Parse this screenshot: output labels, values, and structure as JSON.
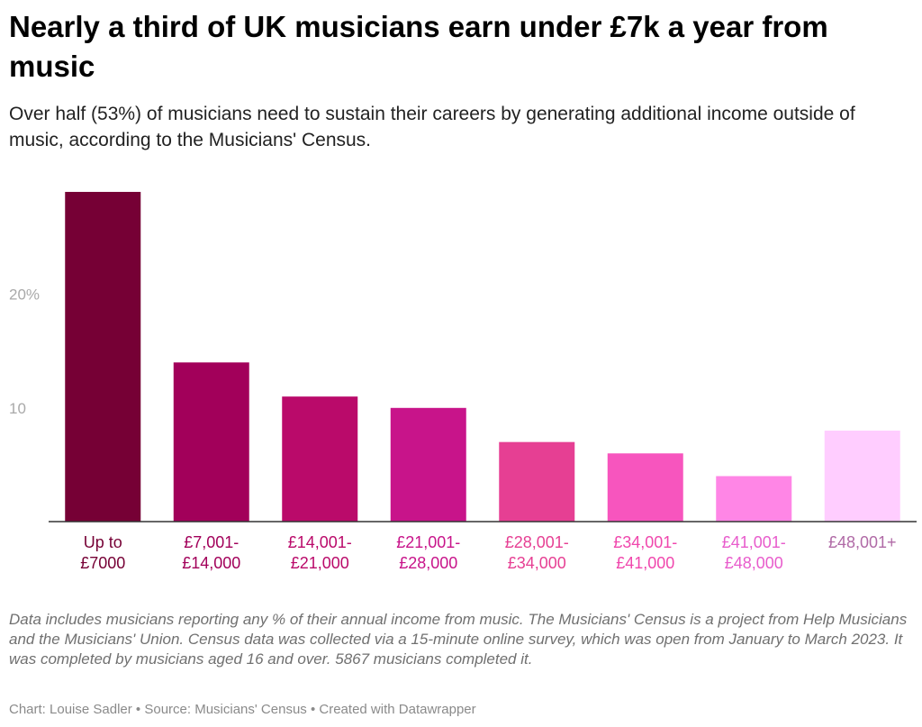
{
  "title": "Nearly a third of UK musicians earn under £7k a year from music",
  "subtitle": "Over half (53%) of musicians need to sustain their careers by generating additional income outside of music, according to the Musicians' Census.",
  "notes": "Data includes musicians reporting any % of their annual income from music. The Musicians' Census is a project from Help Musicians and the Musicians' Union. Census data was collected via a 15-minute online survey, which was open from January to March 2023. It was completed by musicians aged 16 and over. 5867 musicians completed it.",
  "credits": {
    "chart": "Chart: Louise Sadler",
    "separator": " • ",
    "source": "Source: Musicians' Census",
    "tool": "Created with Datawrapper"
  },
  "chart_data": {
    "type": "bar",
    "categories": [
      [
        "Up to",
        "£7000"
      ],
      [
        "£7,001-",
        "£14,000"
      ],
      [
        "£14,001-",
        "£21,000"
      ],
      [
        "£21,001-",
        "£28,000"
      ],
      [
        "£28,001-",
        "£34,000"
      ],
      [
        "£34,001-",
        "£41,000"
      ],
      [
        "£41,001-",
        "£48,000"
      ],
      [
        "£48,001+"
      ]
    ],
    "values": [
      29,
      14,
      11,
      10,
      7,
      6,
      4,
      8
    ],
    "colors": [
      "#760035",
      "#a2005a",
      "#ba0a6a",
      "#c8148a",
      "#e63f93",
      "#f755be",
      "#ff86e6",
      "#ffcdff"
    ],
    "label_colors": [
      "#760035",
      "#a2005a",
      "#ba0a6a",
      "#c8148a",
      "#e63f93",
      "#f047ad",
      "#e85ccc",
      "#b06aa6"
    ],
    "y_ticks": [
      {
        "value": 10,
        "label": "10"
      },
      {
        "value": 20,
        "label": "20%"
      }
    ],
    "ylim": [
      0,
      29
    ],
    "xlabel": "",
    "ylabel": "",
    "grid": false,
    "axis_color": "#333333",
    "tick_label_color": "#a9a9a9"
  }
}
